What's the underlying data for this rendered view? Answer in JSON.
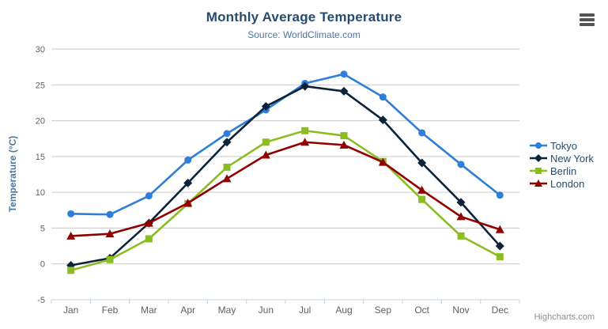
{
  "chart_data": {
    "type": "line",
    "title": "Monthly Average Temperature",
    "subtitle": "Source: WorldClimate.com",
    "categories": [
      "Jan",
      "Feb",
      "Mar",
      "Apr",
      "May",
      "Jun",
      "Jul",
      "Aug",
      "Sep",
      "Oct",
      "Nov",
      "Dec"
    ],
    "series": [
      {
        "name": "Tokyo",
        "color": "#2f7ed8",
        "marker": "circle",
        "values": [
          7.0,
          6.9,
          9.5,
          14.5,
          18.2,
          21.5,
          25.2,
          26.5,
          23.3,
          18.3,
          13.9,
          9.6
        ]
      },
      {
        "name": "New York",
        "color": "#0d233a",
        "marker": "diamond",
        "values": [
          -0.2,
          0.8,
          5.7,
          11.3,
          17.0,
          22.0,
          24.8,
          24.1,
          20.1,
          14.1,
          8.6,
          2.5
        ]
      },
      {
        "name": "Berlin",
        "color": "#8bbc21",
        "marker": "square",
        "values": [
          -0.9,
          0.6,
          3.5,
          8.4,
          13.5,
          17.0,
          18.6,
          17.9,
          14.3,
          9.0,
          3.9,
          1.0
        ]
      },
      {
        "name": "London",
        "color": "#910000",
        "marker": "triangle",
        "values": [
          3.9,
          4.2,
          5.7,
          8.5,
          11.9,
          15.2,
          17.0,
          16.6,
          14.2,
          10.3,
          6.6,
          4.8
        ]
      }
    ],
    "xlabel": "",
    "ylabel": "Temperature (°C)",
    "ylim": [
      -5,
      30
    ],
    "yticks": [
      -5,
      0,
      5,
      10,
      15,
      20,
      25,
      30
    ],
    "grid": true,
    "legend_position": "right",
    "colors": {
      "title": "#274b6d",
      "subtitle": "#4d759e",
      "axis_title": "#4d759e",
      "tick_label": "#606060",
      "gridline": "#c9c9c9",
      "axis_line": "#c0d0e0"
    }
  },
  "icons": {
    "context_menu": "hamburger-icon"
  },
  "credits": {
    "label": "Highcharts.com"
  }
}
